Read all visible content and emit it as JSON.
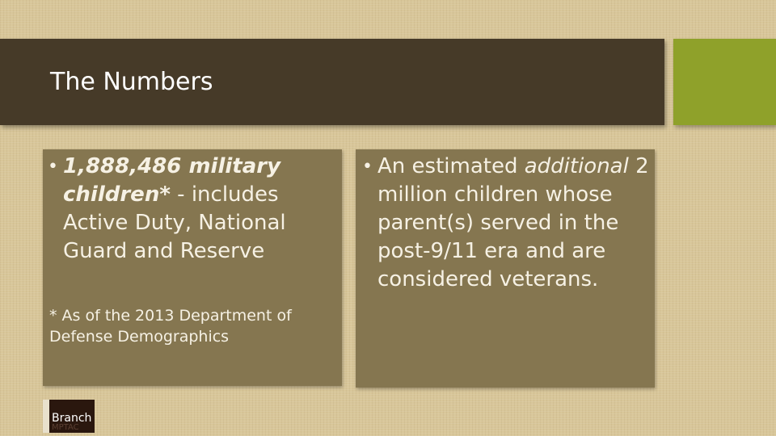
{
  "slide": {
    "title": "The Numbers",
    "colors": {
      "title_bar": "#463a28",
      "accent": "#8fa12a",
      "box": "#857650",
      "background": "#d8c699"
    },
    "left_box": {
      "bullet_bold": "1,888,486 military children*",
      "bullet_rest": " - includes Active Duty, National Guard and Reserve",
      "footnote": "* As of the 2013 Department of Defense Demographics"
    },
    "right_box": {
      "bullet_pre": "An estimated ",
      "bullet_italic": "additional",
      "bullet_post": " 2 million children whose parent(s) served in the post-9/11 era and are considered veterans."
    },
    "logo": {
      "name": "Branch",
      "sub": "MPTAC"
    }
  }
}
